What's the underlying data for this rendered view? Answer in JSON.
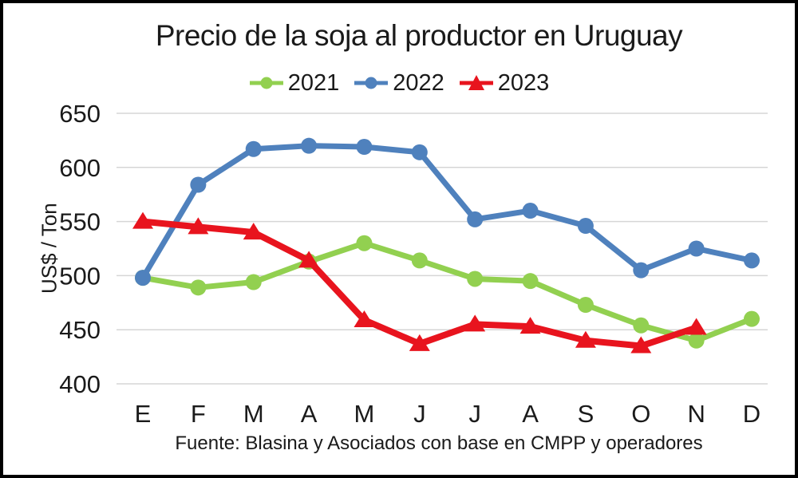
{
  "chart_data": {
    "type": "line",
    "title": "Precio de la soja al productor en Uruguay",
    "ylabel": "US$ / Ton",
    "xlabel": "",
    "source": "Fuente: Blasina y Asociados con base en CMPP y operadores",
    "ylim": [
      400,
      650
    ],
    "ytick_step": 50,
    "grid": "horizontal-gridlines-only",
    "legend_position": "top-center",
    "categories": [
      "E",
      "F",
      "M",
      "A",
      "M",
      "J",
      "J",
      "A",
      "S",
      "O",
      "N",
      "D"
    ],
    "series": [
      {
        "name": "2021",
        "color": "#92d050",
        "marker": "circle",
        "values": [
          498,
          489,
          494,
          513,
          530,
          514,
          497,
          495,
          473,
          454,
          440,
          460
        ]
      },
      {
        "name": "2022",
        "color": "#4f81bd",
        "marker": "circle",
        "values": [
          498,
          584,
          617,
          620,
          619,
          614,
          552,
          560,
          546,
          505,
          525,
          514
        ]
      },
      {
        "name": "2023",
        "color": "#e8141e",
        "marker": "triangle",
        "values": [
          550,
          545,
          540,
          514,
          459,
          437,
          455,
          453,
          440,
          435,
          452,
          null
        ]
      }
    ],
    "colors": {
      "grid": "#d6d6d6",
      "text": "#1a1a1a"
    }
  }
}
